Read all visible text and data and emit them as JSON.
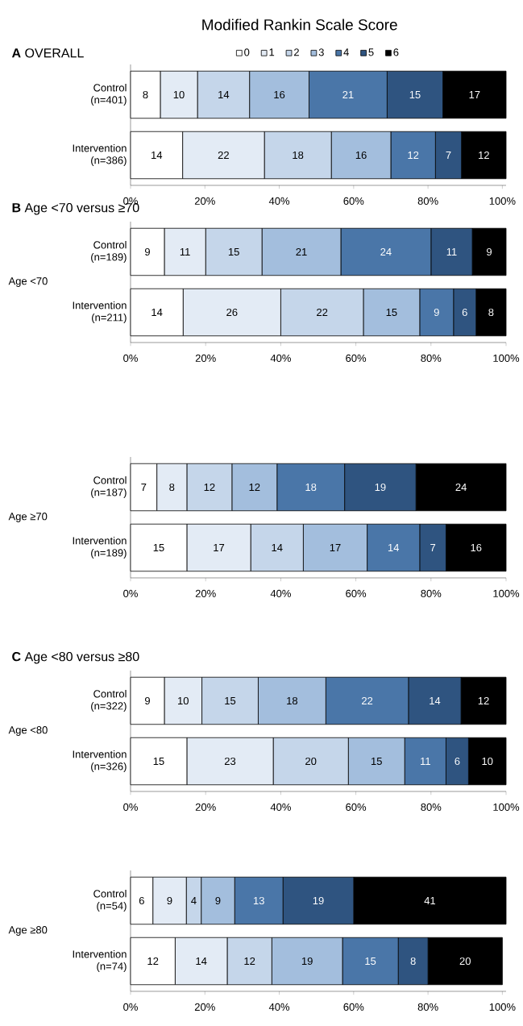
{
  "chart_data": [
    {
      "type": "bar",
      "orientation": "horizontal",
      "stacked": true,
      "title": "**A** OVERALL",
      "legend_title": "Modified Rankin Scale Score",
      "legend": "top",
      "data_labels": true,
      "categories": [
        "Control (n=401)",
        "Intervention (n=386)"
      ],
      "series": [
        {
          "name": "0",
          "color": "#ffffff",
          "values": [
            8,
            14
          ]
        },
        {
          "name": "1",
          "color": "#e3ebf5",
          "values": [
            10,
            22
          ]
        },
        {
          "name": "2",
          "color": "#c5d6ea",
          "values": [
            14,
            18
          ]
        },
        {
          "name": "3",
          "color": "#a3bedd",
          "values": [
            16,
            16
          ]
        },
        {
          "name": "4",
          "color": "#4a76a8",
          "values": [
            21,
            12
          ]
        },
        {
          "name": "5",
          "color": "#2f5480",
          "values": [
            15,
            7
          ]
        },
        {
          "name": "6",
          "color": "#000000",
          "values": [
            17,
            12
          ]
        }
      ],
      "xlim": [
        0,
        101
      ],
      "xticks": [
        {
          "value": 0,
          "label": "0%"
        },
        {
          "value": 20,
          "label": "20%"
        },
        {
          "value": 40,
          "label": "40%"
        },
        {
          "value": 60,
          "label": "60%"
        },
        {
          "value": 80,
          "label": "80%"
        },
        {
          "value": 100,
          "label": "100%"
        }
      ]
    },
    {
      "type": "bar",
      "orientation": "horizontal",
      "stacked": true,
      "title": "**B** Age <70 versus ≥70",
      "ylabel": "Age <70",
      "data_labels": true,
      "categories": [
        "Control (n=189)",
        "Intervention (n=211)"
      ],
      "series": [
        {
          "color": "#ffffff",
          "values": [
            9,
            14
          ]
        },
        {
          "color": "#e3ebf5",
          "values": [
            11,
            26
          ]
        },
        {
          "color": "#c5d6ea",
          "values": [
            15,
            22
          ]
        },
        {
          "color": "#a3bedd",
          "values": [
            21,
            15
          ]
        },
        {
          "color": "#4a76a8",
          "values": [
            24,
            9
          ]
        },
        {
          "color": "#2f5480",
          "values": [
            11,
            6
          ]
        },
        {
          "color": "#000000",
          "values": [
            9,
            8
          ]
        }
      ],
      "xlim": [
        0,
        100
      ],
      "xticks": [
        {
          "value": 0,
          "label": "0%"
        },
        {
          "value": 20,
          "label": "20%"
        },
        {
          "value": 40,
          "label": "40%"
        },
        {
          "value": 60,
          "label": "60%"
        },
        {
          "value": 80,
          "label": "80%"
        },
        {
          "value": 100,
          "label": "100%"
        }
      ]
    },
    {
      "type": "bar",
      "orientation": "horizontal",
      "stacked": true,
      "ylabel": "Age ≥70",
      "data_labels": true,
      "categories": [
        "Control (n=187)",
        "Intervention (n=189)"
      ],
      "series": [
        {
          "color": "#ffffff",
          "values": [
            7,
            15
          ]
        },
        {
          "color": "#e3ebf5",
          "values": [
            8,
            17
          ]
        },
        {
          "color": "#c5d6ea",
          "values": [
            12,
            14
          ]
        },
        {
          "color": "#a3bedd",
          "values": [
            12,
            17
          ]
        },
        {
          "color": "#4a76a8",
          "values": [
            18,
            14
          ]
        },
        {
          "color": "#2f5480",
          "values": [
            19,
            7
          ]
        },
        {
          "color": "#000000",
          "values": [
            24,
            16
          ]
        }
      ],
      "xlim": [
        0,
        100
      ],
      "xticks": [
        {
          "value": 0,
          "label": "0%"
        },
        {
          "value": 20,
          "label": "20%"
        },
        {
          "value": 40,
          "label": "40%"
        },
        {
          "value": 60,
          "label": "60%"
        },
        {
          "value": 80,
          "label": "80%"
        },
        {
          "value": 100,
          "label": "100%"
        }
      ]
    },
    {
      "type": "bar",
      "orientation": "horizontal",
      "stacked": true,
      "title": "**C** Age <80 versus ≥80",
      "ylabel": "Age <80",
      "data_labels": true,
      "categories": [
        "Control (n=322)",
        "Intervention (n=326)"
      ],
      "series": [
        {
          "color": "#ffffff",
          "values": [
            9,
            15
          ]
        },
        {
          "color": "#e3ebf5",
          "values": [
            10,
            23
          ]
        },
        {
          "color": "#c5d6ea",
          "values": [
            15,
            20
          ]
        },
        {
          "color": "#a3bedd",
          "values": [
            18,
            15
          ]
        },
        {
          "color": "#4a76a8",
          "values": [
            22,
            11
          ]
        },
        {
          "color": "#2f5480",
          "values": [
            14,
            6
          ]
        },
        {
          "color": "#000000",
          "values": [
            12,
            10
          ]
        }
      ],
      "xlim": [
        0,
        100
      ],
      "xticks": [
        {
          "value": 0,
          "label": "0%"
        },
        {
          "value": 20,
          "label": "20%"
        },
        {
          "value": 40,
          "label": "40%"
        },
        {
          "value": 60,
          "label": "60%"
        },
        {
          "value": 80,
          "label": "80%"
        },
        {
          "value": 100,
          "label": "100%"
        }
      ]
    },
    {
      "type": "bar",
      "orientation": "horizontal",
      "stacked": true,
      "ylabel": "Age ≥80",
      "data_labels": true,
      "categories": [
        "Control (n=54)",
        "Intervention (n=74)"
      ],
      "series": [
        {
          "color": "#ffffff",
          "values": [
            6,
            12
          ]
        },
        {
          "color": "#e3ebf5",
          "values": [
            9,
            14
          ]
        },
        {
          "color": "#c5d6ea",
          "values": [
            4,
            12
          ]
        },
        {
          "color": "#a3bedd",
          "values": [
            9,
            19
          ]
        },
        {
          "color": "#4a76a8",
          "values": [
            13,
            15
          ]
        },
        {
          "color": "#2f5480",
          "values": [
            19,
            8
          ]
        },
        {
          "color": "#000000",
          "values": [
            41,
            20
          ]
        }
      ],
      "xlim": [
        0,
        101
      ],
      "xticks": [
        {
          "value": 0,
          "label": "0%"
        },
        {
          "value": 20,
          "label": "20%"
        },
        {
          "value": 40,
          "label": "40%"
        },
        {
          "value": 60,
          "label": "60%"
        },
        {
          "value": 80,
          "label": "80%"
        },
        {
          "value": 100,
          "label": "100%"
        }
      ]
    }
  ]
}
